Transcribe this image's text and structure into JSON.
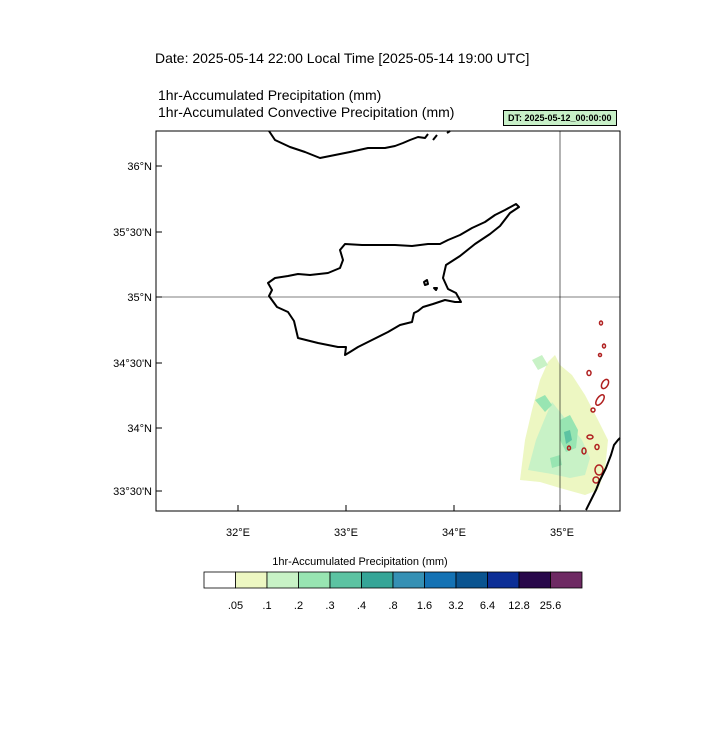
{
  "header": {
    "date_line": "Date: 2025-05-14  22:00 Local Time [2025-05-14  19:00 UTC]",
    "variable_1": "1hr-Accumulated Precipitation   (mm)",
    "variable_2": "1hr-Accumulated Convective Precipitation   (mm)",
    "dt_badge": "DT: 2025-05-12_00:00:00"
  },
  "map": {
    "region": "Cyprus and eastern Mediterranean",
    "lat_labels": [
      "36°N",
      "35°30'N",
      "35°N",
      "34°30'N",
      "34°N",
      "33°30'N"
    ],
    "lon_labels": [
      "32°E",
      "33°E",
      "34°E",
      "35°E"
    ],
    "gridlines": [
      "35°N",
      "35°E"
    ]
  },
  "colorbar": {
    "title": "1hr-Accumulated Precipitation  (mm)",
    "labels": [
      ".05",
      ".1",
      ".2",
      ".3",
      ".4",
      ".8",
      "1.6",
      "3.2",
      "6.4",
      "12.8",
      "25.6"
    ],
    "colors": [
      "#ffffff",
      "#edf7c2",
      "#c8f2c6",
      "#98e5b2",
      "#5cc3a2",
      "#35a597",
      "#3590b4",
      "#1472b4",
      "#0a5490",
      "#0c2e96",
      "#28084a",
      "#6e2a63"
    ]
  }
}
